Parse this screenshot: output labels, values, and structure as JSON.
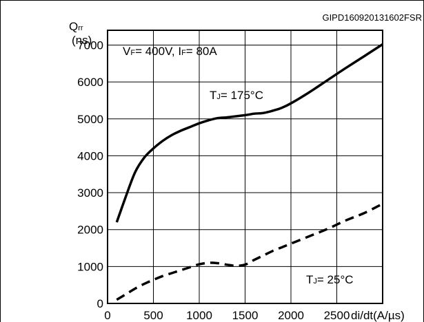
{
  "figure_id": "GIPD160920131602FSR",
  "chart_data": {
    "type": "line",
    "ylabel_main": "Q",
    "ylabel_sub": "rr",
    "ylabel_unit": "(ns)",
    "xlabel": "di/dt(A/µs)",
    "xlim": [
      0,
      3000
    ],
    "ylim": [
      0,
      7400
    ],
    "xticks": [
      0,
      500,
      1000,
      1500,
      2000,
      2500
    ],
    "yticks": [
      0,
      1000,
      2000,
      3000,
      4000,
      5000,
      6000,
      7000
    ],
    "grid": true,
    "conditions": {
      "vf_main": "V",
      "vf_sub": "F",
      "vf_value": "= 400V, ",
      "if_main": "I",
      "if_sub": "F",
      "if_value": "= 80A"
    },
    "series": [
      {
        "label_main": "T",
        "label_sub": "J",
        "label_value": "= 175°C",
        "style": "solid",
        "x": [
          100,
          200,
          300,
          400,
          500,
          600,
          700,
          800,
          900,
          1000,
          1100,
          1200,
          1300,
          1400,
          1500,
          1600,
          1700,
          1800,
          1900,
          2000,
          2200,
          2400,
          2600,
          2800,
          3000
        ],
        "y": [
          2200,
          2900,
          3550,
          3950,
          4200,
          4400,
          4560,
          4680,
          4780,
          4880,
          4960,
          5020,
          5040,
          5070,
          5100,
          5140,
          5160,
          5220,
          5300,
          5420,
          5720,
          6050,
          6380,
          6700,
          7020
        ]
      },
      {
        "label_main": "T",
        "label_sub": "J",
        "label_value": "= 25°C",
        "style": "dashed",
        "x": [
          100,
          200,
          300,
          400,
          500,
          600,
          700,
          800,
          900,
          1000,
          1100,
          1200,
          1300,
          1400,
          1500,
          1600,
          1700,
          1800,
          1900,
          2000,
          2200,
          2400,
          2600,
          2800,
          3000
        ],
        "y": [
          100,
          250,
          400,
          530,
          640,
          740,
          820,
          900,
          980,
          1060,
          1100,
          1090,
          1050,
          1020,
          1050,
          1180,
          1300,
          1420,
          1520,
          1620,
          1820,
          2020,
          2250,
          2450,
          2700
        ]
      }
    ]
  }
}
